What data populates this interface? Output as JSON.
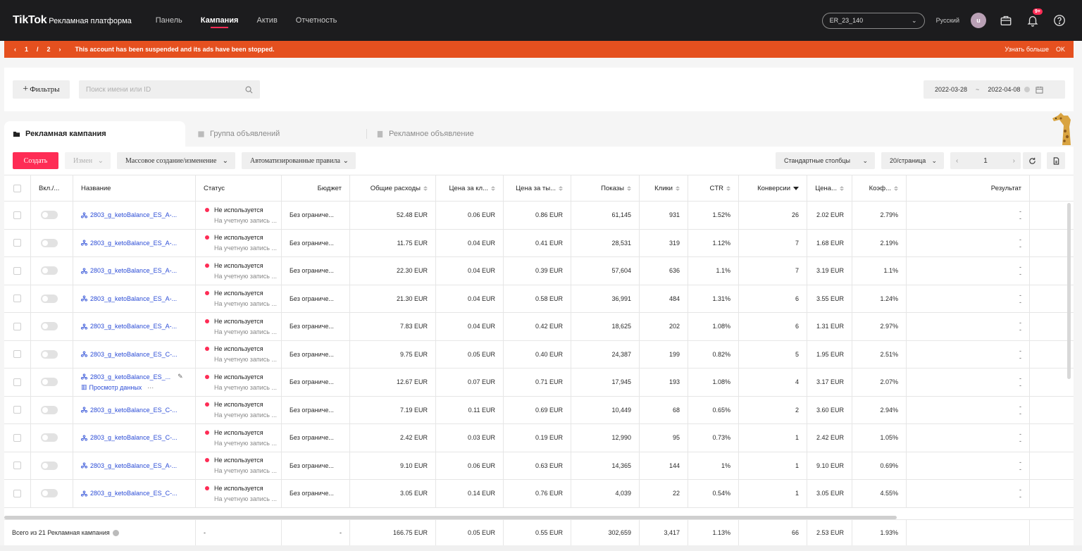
{
  "topbar": {
    "brand": "TikTok",
    "brand_sub": "Рекламная платформа",
    "nav": [
      "Панель",
      "Кампания",
      "Актив",
      "Отчетность"
    ],
    "account": "ER_23_140",
    "language": "Русский",
    "avatar_letter": "u",
    "notif_count": "9+"
  },
  "alert": {
    "page_current": "1",
    "page_sep": "/",
    "page_total": "2",
    "message": "This account has been suspended and its ads have been stopped.",
    "learn_more": "Узнать больше",
    "ok": "OK",
    "color": "#e5501f"
  },
  "filters": {
    "filters_label": "Фильтры",
    "search_placeholder": "Поиск имени или ID",
    "date_start": "2022-03-28",
    "date_sep": "~",
    "date_end": "2022-04-08"
  },
  "tabs": [
    "Рекламная кампания",
    "Группа объявлений",
    "Рекламное объявление"
  ],
  "toolbar": {
    "create": "Создать",
    "edit": "Измен",
    "bulk": "Массовое создание/изменение",
    "rules": "Автоматизированные правила",
    "columns": "Стандартные столбцы",
    "per_page": "20/страница",
    "page": "1",
    "accent": "#fe2c55"
  },
  "columns": [
    "Вкл./...",
    "Название",
    "Статус",
    "Бюджет",
    "Общие расходы",
    "Цена за кл...",
    "Цена за ты...",
    "Показы",
    "Клики",
    "CTR",
    "Конверсии",
    "Цена...",
    "Коэф...",
    "Результат"
  ],
  "rows": [
    {
      "name": "2803_g_ketoBalance_ES_A-...",
      "status": "Не используется",
      "status_sub": "На учетную запись ...",
      "budget": "Без ограниче...",
      "spend": "52.48 EUR",
      "cpc": "0.06 EUR",
      "cpm": "0.86 EUR",
      "impr": "61,145",
      "clicks": "931",
      "ctr": "1.52%",
      "conv": "26",
      "cpa": "2.02 EUR",
      "cvr": "2.79%",
      "res1": "-",
      "res2": "-"
    },
    {
      "name": "2803_g_ketoBalance_ES_A-...",
      "status": "Не используется",
      "status_sub": "На учетную запись ...",
      "budget": "Без ограниче...",
      "spend": "11.75 EUR",
      "cpc": "0.04 EUR",
      "cpm": "0.41 EUR",
      "impr": "28,531",
      "clicks": "319",
      "ctr": "1.12%",
      "conv": "7",
      "cpa": "1.68 EUR",
      "cvr": "2.19%",
      "res1": "-",
      "res2": "-"
    },
    {
      "name": "2803_g_ketoBalance_ES_A-...",
      "status": "Не используется",
      "status_sub": "На учетную запись ...",
      "budget": "Без ограниче...",
      "spend": "22.30 EUR",
      "cpc": "0.04 EUR",
      "cpm": "0.39 EUR",
      "impr": "57,604",
      "clicks": "636",
      "ctr": "1.1%",
      "conv": "7",
      "cpa": "3.19 EUR",
      "cvr": "1.1%",
      "res1": "-",
      "res2": "-"
    },
    {
      "name": "2803_g_ketoBalance_ES_A-...",
      "status": "Не используется",
      "status_sub": "На учетную запись ...",
      "budget": "Без ограниче...",
      "spend": "21.30 EUR",
      "cpc": "0.04 EUR",
      "cpm": "0.58 EUR",
      "impr": "36,991",
      "clicks": "484",
      "ctr": "1.31%",
      "conv": "6",
      "cpa": "3.55 EUR",
      "cvr": "1.24%",
      "res1": "-",
      "res2": "-"
    },
    {
      "name": "2803_g_ketoBalance_ES_A-...",
      "status": "Не используется",
      "status_sub": "На учетную запись ...",
      "budget": "Без ограниче...",
      "spend": "7.83 EUR",
      "cpc": "0.04 EUR",
      "cpm": "0.42 EUR",
      "impr": "18,625",
      "clicks": "202",
      "ctr": "1.08%",
      "conv": "6",
      "cpa": "1.31 EUR",
      "cvr": "2.97%",
      "res1": "-",
      "res2": "-"
    },
    {
      "name": "2803_g_ketoBalance_ES_C-...",
      "status": "Не используется",
      "status_sub": "На учетную запись ...",
      "budget": "Без ограниче...",
      "spend": "9.75 EUR",
      "cpc": "0.05 EUR",
      "cpm": "0.40 EUR",
      "impr": "24,387",
      "clicks": "199",
      "ctr": "0.82%",
      "conv": "5",
      "cpa": "1.95 EUR",
      "cvr": "2.51%",
      "res1": "-",
      "res2": "-"
    },
    {
      "name": "2803_g_ketoBalance_ES_...",
      "view_data": "Просмотр данных",
      "status": "Не используется",
      "status_sub": "На учетную запись ...",
      "budget": "Без ограниче...",
      "spend": "12.67 EUR",
      "cpc": "0.07 EUR",
      "cpm": "0.71 EUR",
      "impr": "17,945",
      "clicks": "193",
      "ctr": "1.08%",
      "conv": "4",
      "cpa": "3.17 EUR",
      "cvr": "2.07%",
      "res1": "-",
      "res2": "-"
    },
    {
      "name": "2803_g_ketoBalance_ES_C-...",
      "status": "Не используется",
      "status_sub": "На учетную запись ...",
      "budget": "Без ограниче...",
      "spend": "7.19 EUR",
      "cpc": "0.11 EUR",
      "cpm": "0.69 EUR",
      "impr": "10,449",
      "clicks": "68",
      "ctr": "0.65%",
      "conv": "2",
      "cpa": "3.60 EUR",
      "cvr": "2.94%",
      "res1": "-",
      "res2": "-"
    },
    {
      "name": "2803_g_ketoBalance_ES_C-...",
      "status": "Не используется",
      "status_sub": "На учетную запись ...",
      "budget": "Без ограниче...",
      "spend": "2.42 EUR",
      "cpc": "0.03 EUR",
      "cpm": "0.19 EUR",
      "impr": "12,990",
      "clicks": "95",
      "ctr": "0.73%",
      "conv": "1",
      "cpa": "2.42 EUR",
      "cvr": "1.05%",
      "res1": "-",
      "res2": "-"
    },
    {
      "name": "2803_g_ketoBalance_ES_A-...",
      "status": "Не используется",
      "status_sub": "На учетную запись ...",
      "budget": "Без ограниче...",
      "spend": "9.10 EUR",
      "cpc": "0.06 EUR",
      "cpm": "0.63 EUR",
      "impr": "14,365",
      "clicks": "144",
      "ctr": "1%",
      "conv": "1",
      "cpa": "9.10 EUR",
      "cvr": "0.69%",
      "res1": "-",
      "res2": "-"
    },
    {
      "name": "2803_g_ketoBalance_ES_C-...",
      "status": "Не используется",
      "status_sub": "На учетную запись ...",
      "budget": "Без ограниче...",
      "spend": "3.05 EUR",
      "cpc": "0.14 EUR",
      "cpm": "0.76 EUR",
      "impr": "4,039",
      "clicks": "22",
      "ctr": "0.54%",
      "conv": "1",
      "cpa": "3.05 EUR",
      "cvr": "4.55%",
      "res1": "-",
      "res2": "-"
    }
  ],
  "footer": {
    "label": "Всего из 21 Рекламная кампания",
    "status": "-",
    "budget": "-",
    "spend": "166.75 EUR",
    "cpc": "0.05 EUR",
    "cpm": "0.55 EUR",
    "impr": "302,659",
    "clicks": "3,417",
    "ctr": "1.13%",
    "conv": "66",
    "cpa": "2.53 EUR",
    "cvr": "1.93%"
  }
}
